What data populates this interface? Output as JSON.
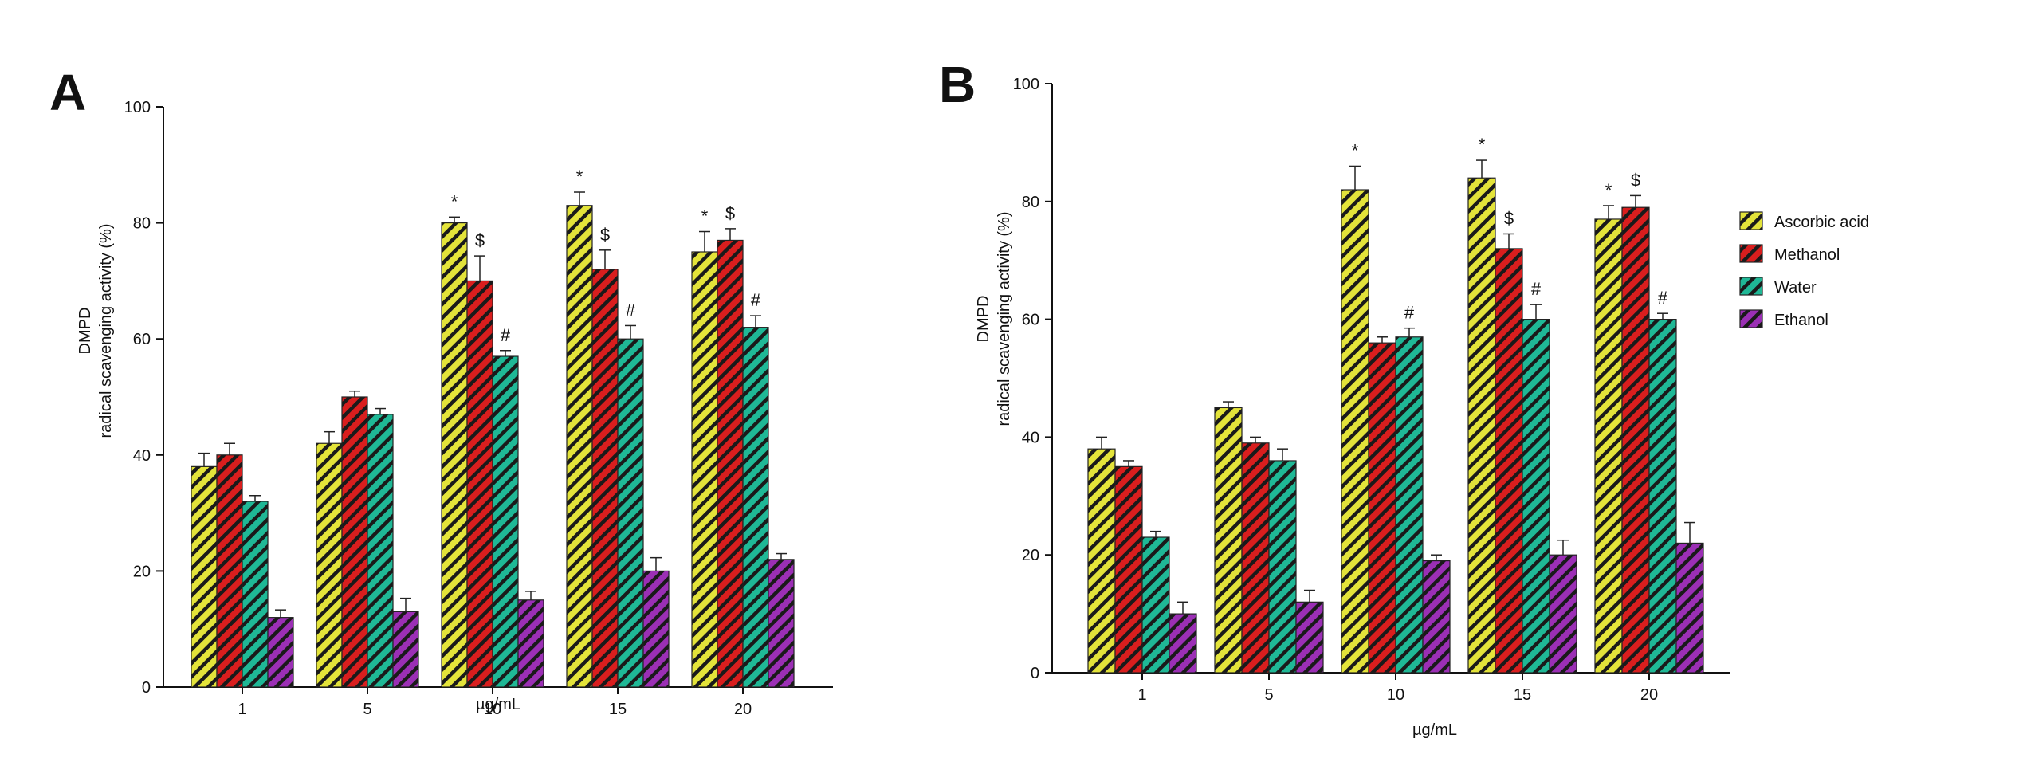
{
  "series_styles": [
    {
      "name": "Ascorbic acid",
      "color": "#e3e33a",
      "stripe": "#1a1a1a"
    },
    {
      "name": "Methanol",
      "color": "#d91e1e",
      "stripe": "#1a1a1a"
    },
    {
      "name": "Water",
      "color": "#1fb896",
      "stripe": "#1a1a1a"
    },
    {
      "name": "Ethanol",
      "color": "#9b2fb5",
      "stripe": "#1a1a1a"
    }
  ],
  "chart_data": [
    {
      "panel": "A",
      "type": "bar",
      "xlabel": "µg/mL",
      "ylabel_line1": "DMPD",
      "ylabel_line2": "radical scavenging activity (%)",
      "ylim": [
        0,
        100
      ],
      "yticks": [
        0,
        20,
        40,
        60,
        80,
        100
      ],
      "categories": [
        "1",
        "5",
        "10",
        "15",
        "20"
      ],
      "legend": false,
      "series": [
        {
          "name": "Ascorbic acid",
          "values": [
            38,
            42,
            80,
            83,
            75
          ],
          "errors": [
            2.3,
            2.0,
            1.0,
            2.3,
            3.5
          ],
          "annotations": [
            "",
            "",
            "*",
            "*",
            "*"
          ]
        },
        {
          "name": "Methanol",
          "values": [
            40,
            50,
            70,
            72,
            77
          ],
          "errors": [
            2.0,
            1.0,
            4.3,
            3.3,
            2.0
          ],
          "annotations": [
            "",
            "",
            "$",
            "$",
            "$"
          ]
        },
        {
          "name": "Water",
          "values": [
            32,
            47,
            57,
            60,
            62
          ],
          "errors": [
            1.0,
            1.0,
            1.0,
            2.3,
            2.0
          ],
          "annotations": [
            "",
            "",
            "#",
            "#",
            "#"
          ]
        },
        {
          "name": "Ethanol",
          "values": [
            12,
            13,
            15,
            20,
            22
          ],
          "errors": [
            1.3,
            2.3,
            1.5,
            2.3,
            1.0
          ],
          "annotations": [
            "",
            "",
            "",
            "",
            ""
          ]
        }
      ]
    },
    {
      "panel": "B",
      "type": "bar",
      "xlabel": "µg/mL",
      "ylabel_line1": "DMPD",
      "ylabel_line2": "radical scavenging activity (%)",
      "ylim": [
        0,
        100
      ],
      "yticks": [
        0,
        20,
        40,
        60,
        80,
        100
      ],
      "categories": [
        "1",
        "5",
        "10",
        "15",
        "20"
      ],
      "legend": true,
      "series": [
        {
          "name": "Ascorbic acid",
          "values": [
            38,
            45,
            82,
            84,
            77
          ],
          "errors": [
            2.0,
            1.0,
            4.0,
            3.0,
            2.3
          ],
          "annotations": [
            "",
            "",
            "*",
            "*",
            "*"
          ]
        },
        {
          "name": "Methanol",
          "values": [
            35,
            39,
            56,
            72,
            79
          ],
          "errors": [
            1.0,
            1.0,
            1.0,
            2.5,
            2.0
          ],
          "annotations": [
            "",
            "",
            "",
            "$",
            "$"
          ]
        },
        {
          "name": "Water",
          "values": [
            23,
            36,
            57,
            60,
            60
          ],
          "errors": [
            1.0,
            2.0,
            1.5,
            2.5,
            1.0
          ],
          "annotations": [
            "",
            "",
            "#",
            "#",
            "#"
          ]
        },
        {
          "name": "Ethanol",
          "values": [
            10,
            12,
            19,
            20,
            22
          ],
          "errors": [
            2.0,
            2.0,
            1.0,
            2.5,
            3.5
          ],
          "annotations": [
            "",
            "",
            "",
            "",
            ""
          ]
        }
      ]
    }
  ]
}
